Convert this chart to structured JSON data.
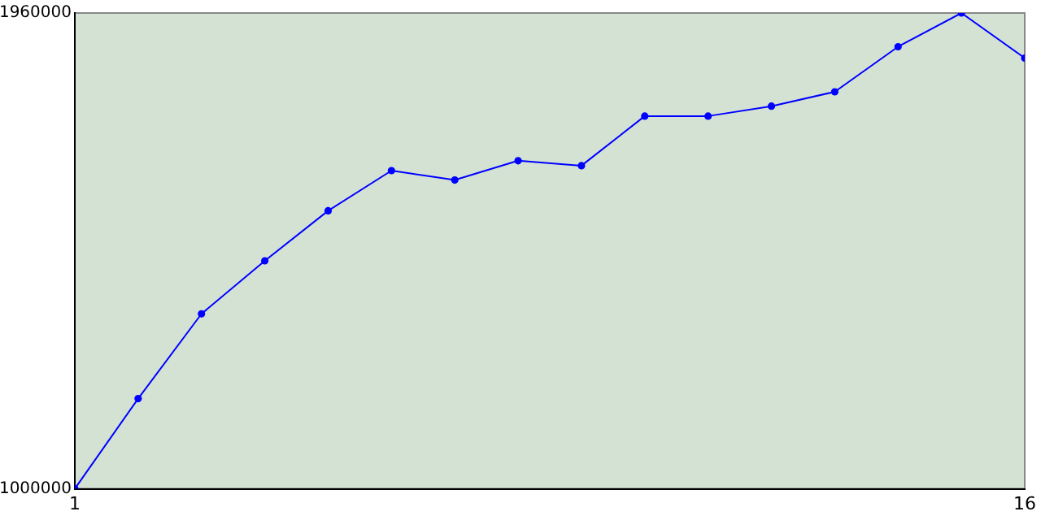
{
  "chart_data": {
    "type": "line",
    "x": [
      1,
      2,
      3,
      4,
      5,
      6,
      7,
      8,
      9,
      10,
      11,
      12,
      13,
      14,
      15,
      16
    ],
    "series": [
      {
        "color": "#0000ff",
        "values": [
          1000000,
          1182000,
          1353000,
          1460000,
          1561000,
          1642000,
          1623000,
          1662000,
          1652000,
          1752000,
          1752000,
          1772000,
          1801000,
          1892000,
          1960000,
          1869000
        ]
      }
    ],
    "xlim": [
      1,
      16
    ],
    "xticks": [
      1,
      16
    ],
    "ylim": [
      1000000,
      1960000
    ],
    "yticks": [
      1000000,
      1960000
    ],
    "grid": false,
    "legend": false,
    "marker": "circle",
    "line_style": "solid"
  }
}
